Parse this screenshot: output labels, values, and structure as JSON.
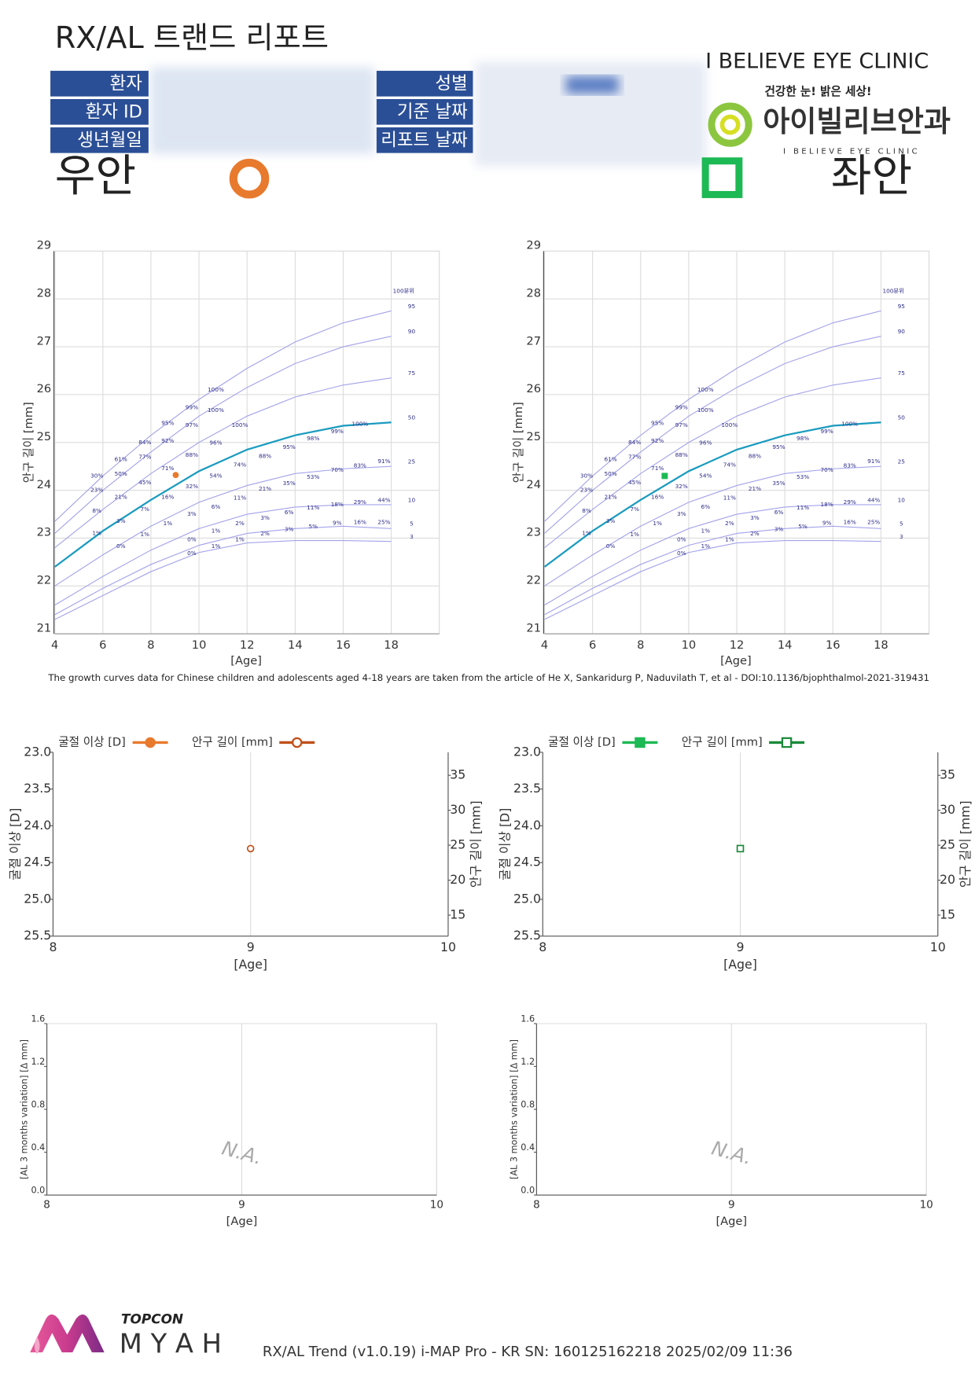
{
  "header": {
    "title": "RX/AL 트랜드 리포트",
    "left_fields": [
      "환자",
      "환자 ID",
      "생년월일"
    ],
    "right_fields": [
      "성별",
      "기준 날짜",
      "리포트 날짜"
    ],
    "clinic_name": "I BELIEVE EYE CLINIC",
    "logo_slogan": "건강한 눈! 밝은 세상!",
    "logo_name": "아이빌리브안과",
    "logo_subtitle": "I BELIEVE EYE CLINIC",
    "right_eye_label": "우안",
    "left_eye_label": "좌안"
  },
  "growth_reference": {
    "percentile_title": "100분위",
    "ages": [
      4,
      6,
      8,
      10,
      12,
      14,
      16,
      18
    ],
    "curves": [
      {
        "name": "95",
        "color": "#a3a3ea",
        "values": [
          23.35,
          24.3,
          25.15,
          25.9,
          26.55,
          27.1,
          27.5,
          27.75
        ]
      },
      {
        "name": "90",
        "color": "#a3a3ea",
        "values": [
          23.1,
          24.0,
          24.8,
          25.55,
          26.15,
          26.65,
          27.0,
          27.22
        ]
      },
      {
        "name": "75",
        "color": "#a3a3ea",
        "values": [
          22.8,
          23.6,
          24.35,
          25.0,
          25.55,
          25.95,
          26.2,
          26.35
        ]
      },
      {
        "name": "50",
        "color": "#1a9bbf",
        "values": [
          22.4,
          23.15,
          23.8,
          24.4,
          24.85,
          25.15,
          25.35,
          25.42
        ]
      },
      {
        "name": "25",
        "color": "#a3a3ea",
        "values": [
          22.0,
          22.65,
          23.25,
          23.75,
          24.1,
          24.35,
          24.45,
          24.5
        ]
      },
      {
        "name": "10",
        "color": "#a3a3ea",
        "values": [
          21.6,
          22.2,
          22.75,
          23.2,
          23.5,
          23.65,
          23.7,
          23.7
        ]
      },
      {
        "name": "5",
        "color": "#a3a3ea",
        "values": [
          21.4,
          21.95,
          22.45,
          22.85,
          23.1,
          23.2,
          23.25,
          23.2
        ]
      },
      {
        "name": "3",
        "color": "#a3a3ea",
        "values": [
          21.3,
          21.8,
          22.3,
          22.7,
          22.9,
          22.95,
          22.95,
          22.93
        ]
      }
    ],
    "labels": [
      {
        "text": "30%",
        "x": 5.75,
        "y": 24.3
      },
      {
        "text": "23%",
        "x": 5.75,
        "y": 24.0
      },
      {
        "text": "8%",
        "x": 5.75,
        "y": 23.57
      },
      {
        "text": "1%",
        "x": 5.75,
        "y": 23.1
      },
      {
        "text": "61%",
        "x": 6.75,
        "y": 24.64
      },
      {
        "text": "50%",
        "x": 6.75,
        "y": 24.34
      },
      {
        "text": "21%",
        "x": 6.75,
        "y": 23.85
      },
      {
        "text": "3%",
        "x": 6.75,
        "y": 23.35
      },
      {
        "text": "0%",
        "x": 6.75,
        "y": 22.83
      },
      {
        "text": "84%",
        "x": 7.75,
        "y": 25.0
      },
      {
        "text": "77%",
        "x": 7.75,
        "y": 24.69
      },
      {
        "text": "45%",
        "x": 7.75,
        "y": 24.16
      },
      {
        "text": "7%",
        "x": 7.75,
        "y": 23.6
      },
      {
        "text": "1%",
        "x": 7.75,
        "y": 23.07
      },
      {
        "text": "95%",
        "x": 8.7,
        "y": 25.4
      },
      {
        "text": "92%",
        "x": 8.7,
        "y": 25.03
      },
      {
        "text": "71%",
        "x": 8.7,
        "y": 24.45
      },
      {
        "text": "16%",
        "x": 8.7,
        "y": 23.85
      },
      {
        "text": "1%",
        "x": 8.7,
        "y": 23.3
      },
      {
        "text": "99%",
        "x": 9.7,
        "y": 25.73
      },
      {
        "text": "97%",
        "x": 9.7,
        "y": 25.36
      },
      {
        "text": "88%",
        "x": 9.7,
        "y": 24.73
      },
      {
        "text": "32%",
        "x": 9.7,
        "y": 24.08
      },
      {
        "text": "3%",
        "x": 9.7,
        "y": 23.5
      },
      {
        "text": "0%",
        "x": 9.7,
        "y": 22.97
      },
      {
        "text": "0%",
        "x": 9.7,
        "y": 22.68
      },
      {
        "text": "100%",
        "x": 10.7,
        "y": 26.1
      },
      {
        "text": "100%",
        "x": 10.7,
        "y": 25.67
      },
      {
        "text": "96%",
        "x": 10.7,
        "y": 24.99
      },
      {
        "text": "54%",
        "x": 10.7,
        "y": 24.3
      },
      {
        "text": "6%",
        "x": 10.7,
        "y": 23.65
      },
      {
        "text": "1%",
        "x": 10.7,
        "y": 23.15
      },
      {
        "text": "1%",
        "x": 10.7,
        "y": 22.83
      },
      {
        "text": "100%",
        "x": 11.7,
        "y": 25.36
      },
      {
        "text": "74%",
        "x": 11.7,
        "y": 24.53
      },
      {
        "text": "11%",
        "x": 11.7,
        "y": 23.84
      },
      {
        "text": "2%",
        "x": 11.7,
        "y": 23.3
      },
      {
        "text": "1%",
        "x": 11.7,
        "y": 22.97
      },
      {
        "text": "88%",
        "x": 12.75,
        "y": 24.71
      },
      {
        "text": "21%",
        "x": 12.75,
        "y": 24.03
      },
      {
        "text": "3%",
        "x": 12.75,
        "y": 23.42
      },
      {
        "text": "2%",
        "x": 12.75,
        "y": 23.09
      },
      {
        "text": "95%",
        "x": 13.75,
        "y": 24.9
      },
      {
        "text": "35%",
        "x": 13.75,
        "y": 24.14
      },
      {
        "text": "6%",
        "x": 13.75,
        "y": 23.53
      },
      {
        "text": "3%",
        "x": 13.75,
        "y": 23.18
      },
      {
        "text": "98%",
        "x": 14.75,
        "y": 25.08
      },
      {
        "text": "53%",
        "x": 14.75,
        "y": 24.27
      },
      {
        "text": "11%",
        "x": 14.75,
        "y": 23.63
      },
      {
        "text": "5%",
        "x": 14.75,
        "y": 23.24
      },
      {
        "text": "99%",
        "x": 15.75,
        "y": 25.23
      },
      {
        "text": "70%",
        "x": 15.75,
        "y": 24.42
      },
      {
        "text": "18%",
        "x": 15.75,
        "y": 23.7
      },
      {
        "text": "9%",
        "x": 15.75,
        "y": 23.31
      },
      {
        "text": "100%",
        "x": 16.7,
        "y": 25.38
      },
      {
        "text": "83%",
        "x": 16.7,
        "y": 24.51
      },
      {
        "text": "29%",
        "x": 16.7,
        "y": 23.75
      },
      {
        "text": "16%",
        "x": 16.7,
        "y": 23.33
      },
      {
        "text": "91%",
        "x": 17.7,
        "y": 24.6
      },
      {
        "text": "44%",
        "x": 17.7,
        "y": 23.79
      },
      {
        "text": "25%",
        "x": 17.7,
        "y": 23.33
      }
    ]
  },
  "chart_data": [
    {
      "type": "growth",
      "x": [
        9.03
      ],
      "values": [
        24.32
      ],
      "color": "#e87a2e",
      "marker": "circle",
      "xlim": [
        4,
        20
      ],
      "xticks": [
        4,
        6,
        8,
        10,
        12,
        14,
        16,
        18
      ],
      "ylim": [
        21,
        29
      ],
      "yticks": [
        21,
        22,
        23,
        24,
        25,
        26,
        27,
        28,
        29
      ],
      "xlabel": "[Age]",
      "ylabel": "안구 길이 [mm]",
      "grid": true
    },
    {
      "type": "growth",
      "x": [
        9.0
      ],
      "values": [
        24.3
      ],
      "color": "#1db954",
      "marker": "square",
      "xlim": [
        4,
        20
      ],
      "xticks": [
        4,
        6,
        8,
        10,
        12,
        14,
        16,
        18
      ],
      "ylim": [
        21,
        29
      ],
      "yticks": [
        21,
        22,
        23,
        24,
        25,
        26,
        27,
        28,
        29
      ],
      "xlabel": "[Age]",
      "ylabel": "안구 길이 [mm]",
      "grid": true
    },
    {
      "type": "dual",
      "x": [
        9
      ],
      "marker": "circle",
      "series": [
        {
          "name": "굴절 이상 [D]",
          "color": "#e87a2e",
          "filled": true,
          "values": [
            null
          ]
        },
        {
          "name": "안구 길이 [mm]",
          "color": "#c0501a",
          "filled": false,
          "values": [
            24.31
          ]
        }
      ],
      "xlim": [
        8,
        10
      ],
      "xticks": [
        8,
        9,
        10
      ],
      "ylim": [
        25.5,
        23.0
      ],
      "yticks": [
        {
          "value": 23,
          "label": "23.0"
        },
        23.5,
        {
          "value": 24,
          "label": "24.0"
        },
        24.5,
        {
          "value": 25,
          "label": "25.0"
        },
        25.5
      ],
      "y2lim": [
        12,
        38.3
      ],
      "y2ticks": [
        15,
        20,
        25,
        30,
        35
      ],
      "xlabel": "[Age]",
      "ylabel": "굴절 이상 [D]",
      "y2label": "안구 길이 [mm]"
    },
    {
      "type": "dual",
      "x": [
        9
      ],
      "marker": "square",
      "series": [
        {
          "name": "굴절 이상 [D]",
          "color": "#1db954",
          "filled": true,
          "values": [
            null
          ]
        },
        {
          "name": "안구 길이 [mm]",
          "color": "#1a8a3a",
          "filled": false,
          "values": [
            24.31
          ]
        }
      ],
      "xlim": [
        8,
        10
      ],
      "xticks": [
        8,
        9,
        10
      ],
      "ylim": [
        25.5,
        23.0
      ],
      "yticks": [
        {
          "value": 23,
          "label": "23.0"
        },
        23.5,
        {
          "value": 24,
          "label": "24.0"
        },
        24.5,
        {
          "value": 25,
          "label": "25.0"
        },
        25.5
      ],
      "y2lim": [
        12,
        38.3
      ],
      "y2ticks": [
        15,
        20,
        25,
        30,
        35
      ],
      "xlabel": "[Age]",
      "ylabel": "굴절 이상 [D]",
      "y2label": "안구 길이 [mm]"
    },
    {
      "type": "variation",
      "xlim": [
        8,
        10
      ],
      "xticks": [
        8,
        9,
        10
      ],
      "ylim": [
        0,
        1.6
      ],
      "yticks": [
        {
          "value": 0,
          "label": "0.0"
        },
        0.4,
        0.8,
        1.2,
        {
          "value": 1.6,
          "label": "1.6"
        }
      ],
      "xlabel": "[Age]",
      "ylabel": "[AL 3 months variation] [Δ mm]",
      "annotation": "N.A."
    },
    {
      "type": "variation",
      "xlim": [
        8,
        10
      ],
      "xticks": [
        8,
        9,
        10
      ],
      "ylim": [
        0,
        1.6
      ],
      "yticks": [
        {
          "value": 0,
          "label": "0.0"
        },
        0.4,
        0.8,
        1.2,
        {
          "value": 1.6,
          "label": "1.6"
        }
      ],
      "xlabel": "[Age]",
      "ylabel": "[AL 3 months variation] [Δ mm]",
      "annotation": "N.A."
    }
  ],
  "citation": "The growth curves data for Chinese children and adolescents aged 4-18 years are taken from the article of He X, Sankaridurg P, Naduvilath T, et al - DOI:10.1136/bjophthalmol-2021-319431",
  "footer": {
    "brand": "TOPCON",
    "product": "M Y A H",
    "info": "RX/AL Trend (v1.0.19) i-MAP Pro - KR SN: 160125162218 2025/02/09 11:36"
  }
}
